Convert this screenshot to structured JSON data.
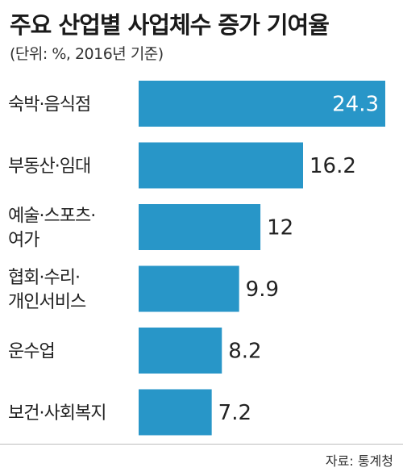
{
  "header": {
    "title": "주요 산업별 사업체수 증가 기여율",
    "subtitle": "(단위: %, 2016년 기준)"
  },
  "footer": {
    "source": "자료: 통계청"
  },
  "colors": {
    "bar": "#2896c8",
    "inside_label": "#ffffff",
    "outside_label": "#222222"
  },
  "chart_data": {
    "type": "bar",
    "orientation": "horizontal",
    "title": "주요 산업별 사업체수 증가 기여율",
    "subtitle": "(단위: %, 2016년 기준)",
    "categories": [
      [
        "숙박·음식점"
      ],
      [
        "부동산·임대"
      ],
      [
        "예술·스포츠·",
        "여가"
      ],
      [
        "협회·수리·",
        "개인서비스"
      ],
      [
        "운수업"
      ],
      [
        "보건·사회복지"
      ]
    ],
    "values": [
      24.3,
      16.2,
      12,
      9.9,
      8.2,
      7.2
    ],
    "value_labels": [
      "24.3",
      "16.2",
      "12",
      "9.9",
      "8.2",
      "7.2"
    ],
    "xlim": [
      0,
      24.3
    ],
    "grid": false,
    "legend": "none"
  }
}
